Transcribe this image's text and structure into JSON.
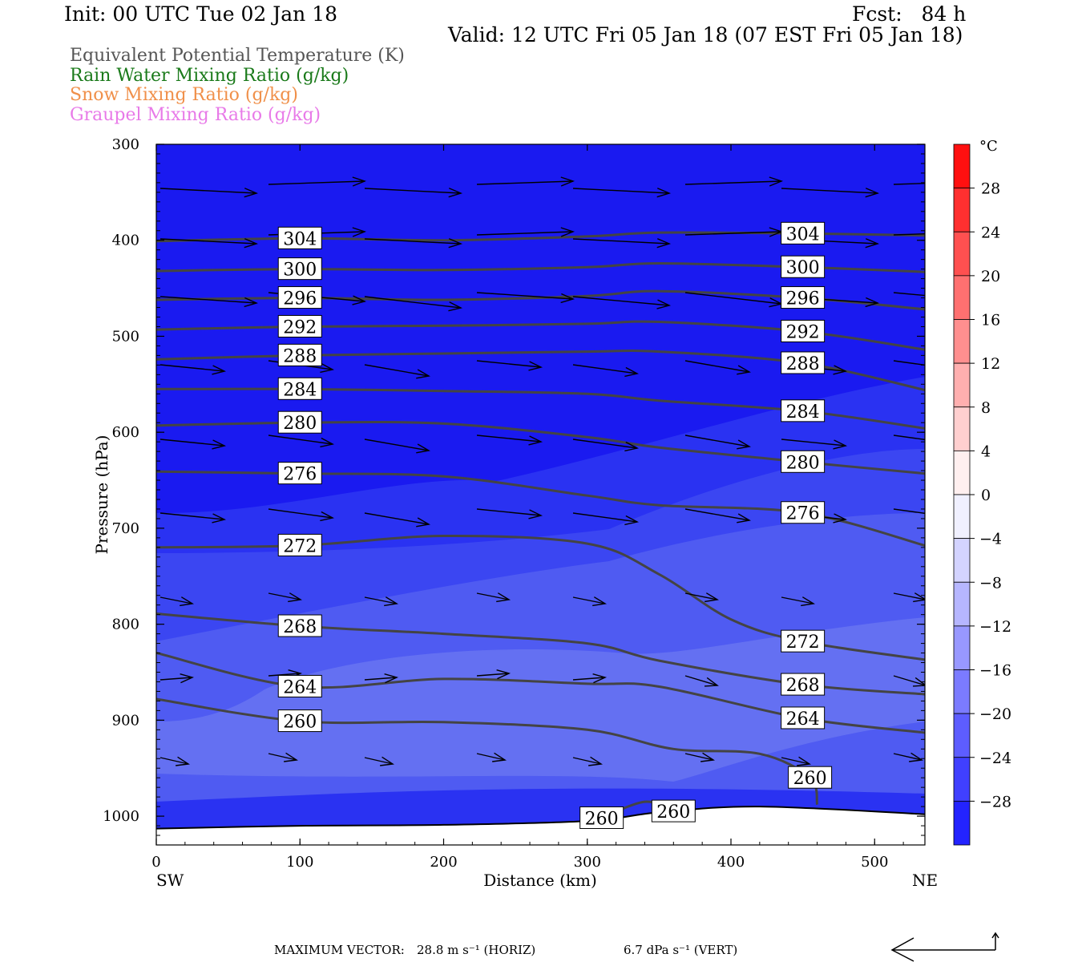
{
  "header": {
    "init": "Init: 00 UTC Tue 02 Jan 18",
    "fcst": "Fcst:   84 h",
    "valid": "Valid: 12 UTC Fri 05 Jan 18 (07 EST Fri 05 Jan 18)"
  },
  "legend": [
    {
      "label": "Equivalent Potential Temperature (K)",
      "color": "#555555"
    },
    {
      "label": "Rain Water Mixing Ratio (g/kg)",
      "color": "#1a7a1a"
    },
    {
      "label": "Snow Mixing Ratio (g/kg)",
      "color": "#f0904a"
    },
    {
      "label": "Graupel Mixing Ratio (g/kg)",
      "color": "#e87ae8"
    }
  ],
  "footer": {
    "max_vector_label": "MAXIMUM VECTOR:",
    "horiz": "28.8 m s⁻¹ (HORIZ)",
    "vert": "6.7 dPa s⁻¹ (VERT)"
  },
  "chart_data": {
    "type": "contour",
    "title": "",
    "xlabel": "Distance (km)",
    "ylabel": "Pressure (hPa)",
    "x_start_label": "SW",
    "x_end_label": "NE",
    "xlim": [
      0,
      535
    ],
    "ylim": [
      1030,
      300
    ],
    "x_ticks": [
      0,
      100,
      200,
      300,
      400,
      500
    ],
    "y_ticks": [
      300,
      400,
      500,
      600,
      700,
      800,
      900,
      1000
    ],
    "colorbar": {
      "unit": "°C",
      "range": [
        -32,
        32
      ],
      "step": 4,
      "tick_labels": [
        28,
        24,
        20,
        16,
        12,
        8,
        4,
        0,
        -4,
        -8,
        -12,
        -16,
        -20,
        -24,
        -28
      ]
    },
    "theta_e_contours": [
      {
        "level": 304,
        "points": [
          [
            0,
            401
          ],
          [
            100,
            398
          ],
          [
            200,
            400
          ],
          [
            300,
            396
          ],
          [
            350,
            392
          ],
          [
            450,
            393
          ],
          [
            535,
            395
          ]
        ]
      },
      {
        "level": 300,
        "points": [
          [
            0,
            432
          ],
          [
            100,
            430
          ],
          [
            200,
            431
          ],
          [
            300,
            428
          ],
          [
            350,
            424
          ],
          [
            450,
            428
          ],
          [
            535,
            433
          ]
        ]
      },
      {
        "level": 296,
        "points": [
          [
            0,
            462
          ],
          [
            100,
            460
          ],
          [
            200,
            462
          ],
          [
            300,
            458
          ],
          [
            350,
            453
          ],
          [
            450,
            460
          ],
          [
            535,
            472
          ]
        ]
      },
      {
        "level": 292,
        "points": [
          [
            0,
            493
          ],
          [
            100,
            490
          ],
          [
            200,
            489
          ],
          [
            300,
            487
          ],
          [
            350,
            485
          ],
          [
            450,
            495
          ],
          [
            535,
            514
          ]
        ]
      },
      {
        "level": 288,
        "points": [
          [
            0,
            524
          ],
          [
            100,
            520
          ],
          [
            200,
            518
          ],
          [
            300,
            516
          ],
          [
            350,
            516
          ],
          [
            450,
            528
          ],
          [
            535,
            556
          ]
        ]
      },
      {
        "level": 284,
        "points": [
          [
            0,
            555
          ],
          [
            100,
            555
          ],
          [
            200,
            557
          ],
          [
            300,
            560
          ],
          [
            350,
            567
          ],
          [
            450,
            578
          ],
          [
            535,
            596
          ]
        ]
      },
      {
        "level": 280,
        "points": [
          [
            0,
            593
          ],
          [
            100,
            590
          ],
          [
            200,
            591
          ],
          [
            300,
            605
          ],
          [
            350,
            616
          ],
          [
            450,
            631
          ],
          [
            535,
            643
          ]
        ]
      },
      {
        "level": 276,
        "points": [
          [
            0,
            641
          ],
          [
            100,
            643
          ],
          [
            200,
            646
          ],
          [
            300,
            666
          ],
          [
            350,
            676
          ],
          [
            450,
            684
          ],
          [
            535,
            718
          ]
        ]
      },
      {
        "level": 272,
        "points": [
          [
            0,
            720
          ],
          [
            100,
            718
          ],
          [
            200,
            708
          ],
          [
            300,
            716
          ],
          [
            350,
            748
          ],
          [
            400,
            795
          ],
          [
            450,
            818
          ],
          [
            535,
            837
          ]
        ]
      },
      {
        "level": 268,
        "points": [
          [
            0,
            789
          ],
          [
            100,
            802
          ],
          [
            200,
            810
          ],
          [
            300,
            820
          ],
          [
            350,
            838
          ],
          [
            450,
            863
          ],
          [
            535,
            873
          ]
        ]
      },
      {
        "level": 264,
        "points": [
          [
            0,
            830
          ],
          [
            100,
            865
          ],
          [
            200,
            857
          ],
          [
            300,
            862
          ],
          [
            350,
            865
          ],
          [
            450,
            898
          ],
          [
            535,
            913
          ]
        ]
      },
      {
        "level": 260,
        "points": [
          [
            0,
            878
          ],
          [
            100,
            901
          ],
          [
            200,
            902
          ],
          [
            300,
            910
          ],
          [
            360,
            930
          ],
          [
            420,
            935
          ],
          [
            455,
            960
          ],
          [
            460,
            988
          ]
        ]
      },
      {
        "level": 260,
        "points": [
          [
            310,
            1002
          ],
          [
            340,
            985
          ],
          [
            360,
            995
          ]
        ]
      }
    ],
    "temperature_bands": [
      {
        "range_c": "<-28",
        "color": "#1a1af0"
      },
      {
        "range_c": "-28 to -24",
        "color": "#2a32f2"
      },
      {
        "range_c": "-24 to -20",
        "color": "#3b46f2"
      },
      {
        "range_c": "-20 to -16",
        "color": "#4f5bf2"
      },
      {
        "range_c": "-16 to -12",
        "color": "#6470f2"
      }
    ],
    "surface_pressure_hpa": [
      [
        0,
        1013
      ],
      [
        100,
        1010
      ],
      [
        200,
        1009
      ],
      [
        300,
        1005
      ],
      [
        350,
        996
      ],
      [
        420,
        990
      ],
      [
        535,
        998
      ]
    ],
    "wind_vectors_present": true
  }
}
